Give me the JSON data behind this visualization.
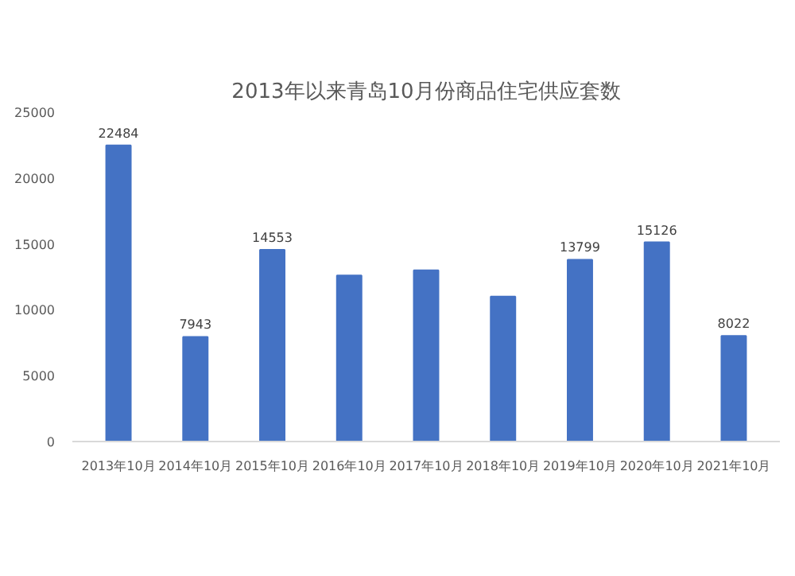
{
  "chart_data": {
    "type": "bar",
    "title": "2013年以来青岛10月份商品住宅供应套数",
    "categories": [
      "2013年10月",
      "2014年10月",
      "2015年10月",
      "2016年10月",
      "2017年10月",
      "2018年10月",
      "2019年10月",
      "2020年10月",
      "2021年10月"
    ],
    "values": [
      22484,
      7943,
      14553,
      12600,
      13000,
      11000,
      13799,
      15126,
      8022
    ],
    "value_labels": [
      "22484",
      "7943",
      "14553",
      null,
      null,
      null,
      "13799",
      "15126",
      "8022"
    ],
    "color": "#4472c4",
    "ylim": [
      0,
      25000
    ],
    "yticks": [
      0,
      5000,
      10000,
      15000,
      20000,
      25000
    ],
    "grid": false
  }
}
